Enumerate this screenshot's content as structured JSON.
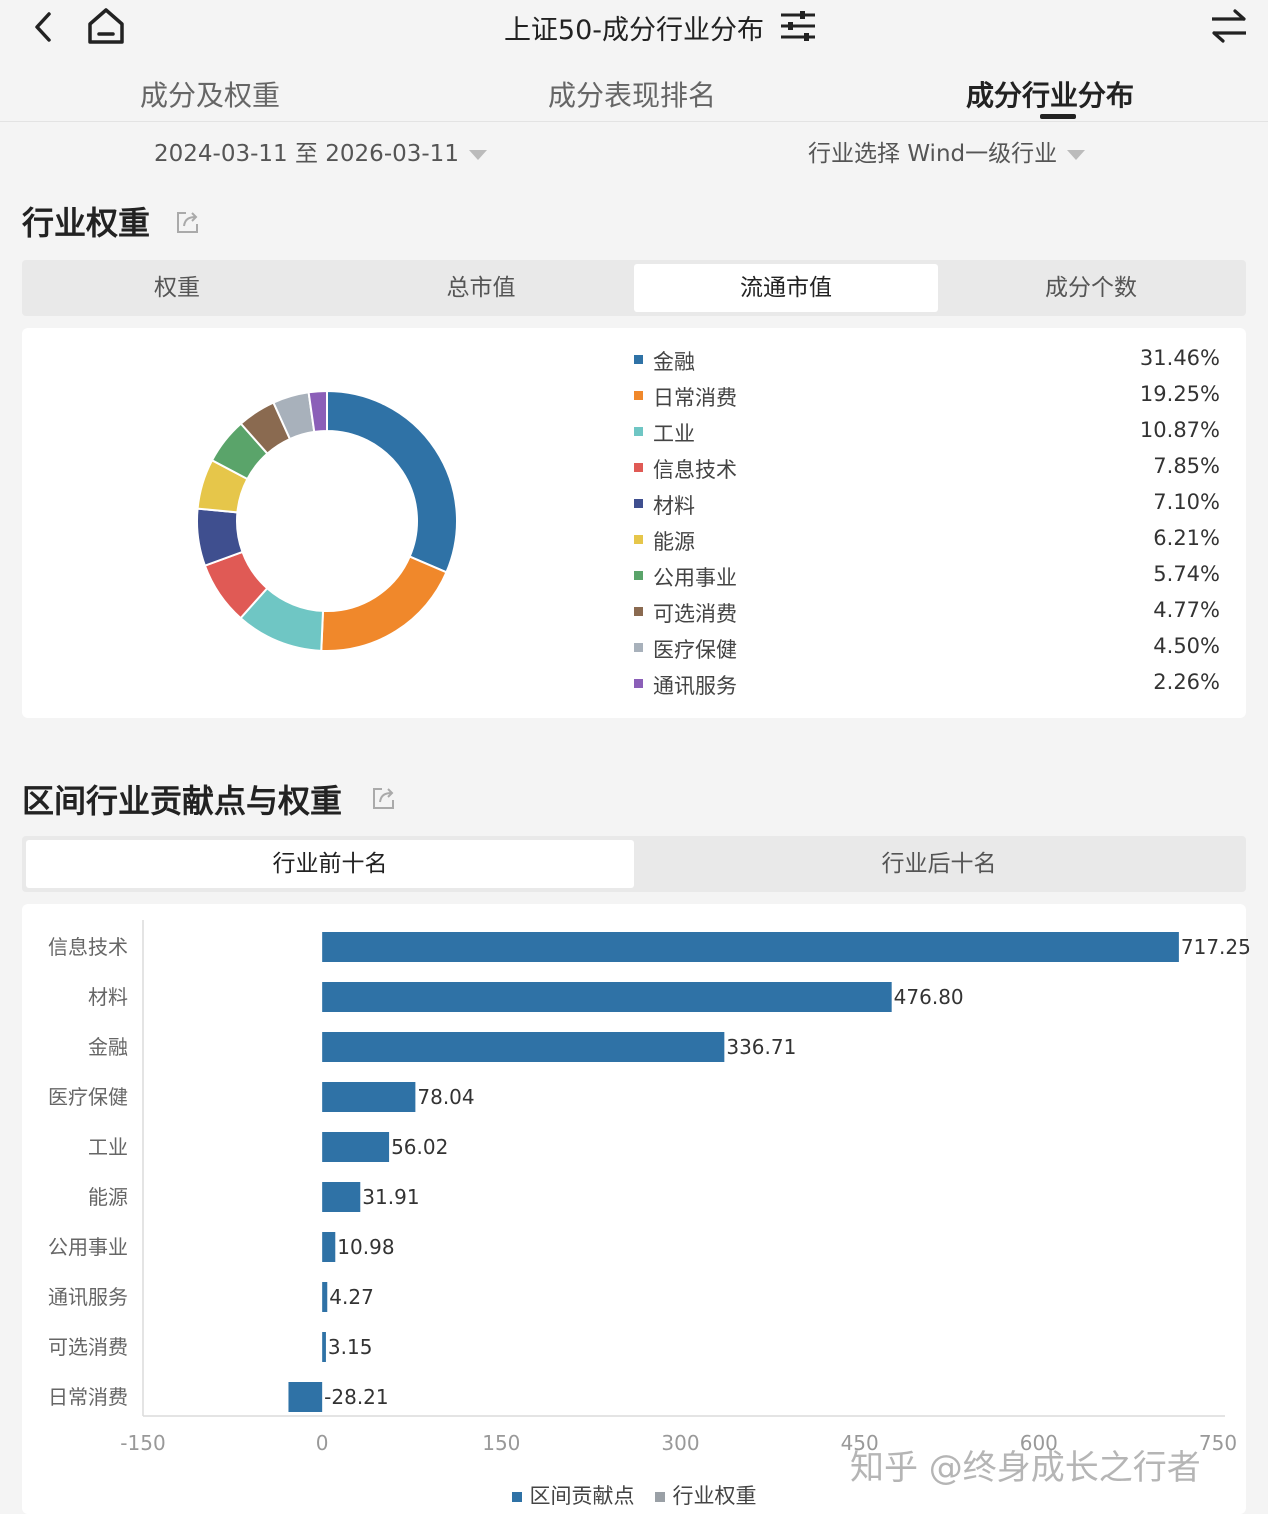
{
  "header": {
    "title": "上证50-成分行业分布",
    "back_icon": "back-icon",
    "home_icon": "home-icon",
    "filter_icon": "filter-icon",
    "switch_icon": "switch-icon"
  },
  "tabs": [
    {
      "label": "成分及权重",
      "active": false
    },
    {
      "label": "成分表现排名",
      "active": false
    },
    {
      "label": "成分行业分布",
      "active": true
    }
  ],
  "filters": {
    "date_range": "2024-03-11 至 2026-03-11",
    "industry_label": "行业选择",
    "industry_value": "Wind一级行业"
  },
  "weight_section": {
    "title": "行业权重",
    "segments": [
      {
        "label": "权重",
        "active": false
      },
      {
        "label": "总市值",
        "active": false
      },
      {
        "label": "流通市值",
        "active": true
      },
      {
        "label": "成分个数",
        "active": false
      }
    ]
  },
  "contrib_section": {
    "title": "区间行业贡献点与权重",
    "segments": [
      {
        "label": "行业前十名",
        "active": true
      },
      {
        "label": "行业后十名",
        "active": false
      }
    ]
  },
  "chart_data": [
    {
      "type": "pie",
      "donut": true,
      "labels": [
        "金融",
        "日常消费",
        "工业",
        "信息技术",
        "材料",
        "能源",
        "公用事业",
        "可选消费",
        "医疗保健",
        "通讯服务"
      ],
      "values": [
        31.46,
        19.25,
        10.87,
        7.85,
        7.1,
        6.21,
        5.74,
        4.77,
        4.5,
        2.26
      ],
      "value_labels": [
        "31.46%",
        "19.25%",
        "10.87%",
        "7.85%",
        "7.10%",
        "6.21%",
        "5.74%",
        "4.77%",
        "4.50%",
        "2.26%"
      ],
      "colors": [
        "#2f72a6",
        "#f0882b",
        "#6fc6c4",
        "#e05a55",
        "#3f4f8f",
        "#e6c64a",
        "#5aa46a",
        "#8a6a50",
        "#a8b1bb",
        "#8b5fb8"
      ],
      "legend_position": "right"
    },
    {
      "type": "bar",
      "orientation": "horizontal",
      "categories": [
        "信息技术",
        "材料",
        "金融",
        "医疗保健",
        "工业",
        "能源",
        "公用事业",
        "通讯服务",
        "可选消费",
        "日常消费"
      ],
      "series": [
        {
          "name": "区间贡献点",
          "values": [
            717.25,
            476.8,
            336.71,
            78.04,
            56.02,
            31.91,
            10.98,
            4.27,
            3.15,
            -28.21
          ],
          "color": "#2f72a6"
        }
      ],
      "value_labels": [
        "717.25",
        "476.80",
        "336.71",
        "78.04",
        "56.02",
        "31.91",
        "10.98",
        "4.27",
        "3.15",
        "-28.21"
      ],
      "legend": [
        {
          "name": "区间贡献点",
          "color": "#2f72a6"
        },
        {
          "name": "行业权重",
          "color": "#9aa0a6"
        }
      ],
      "x_ticks": [
        "-150",
        "0",
        "150",
        "300",
        "450",
        "600",
        "750"
      ],
      "xlim": [
        -150,
        750
      ],
      "grid": false
    }
  ],
  "watermark": "知乎 @终身成长之行者"
}
